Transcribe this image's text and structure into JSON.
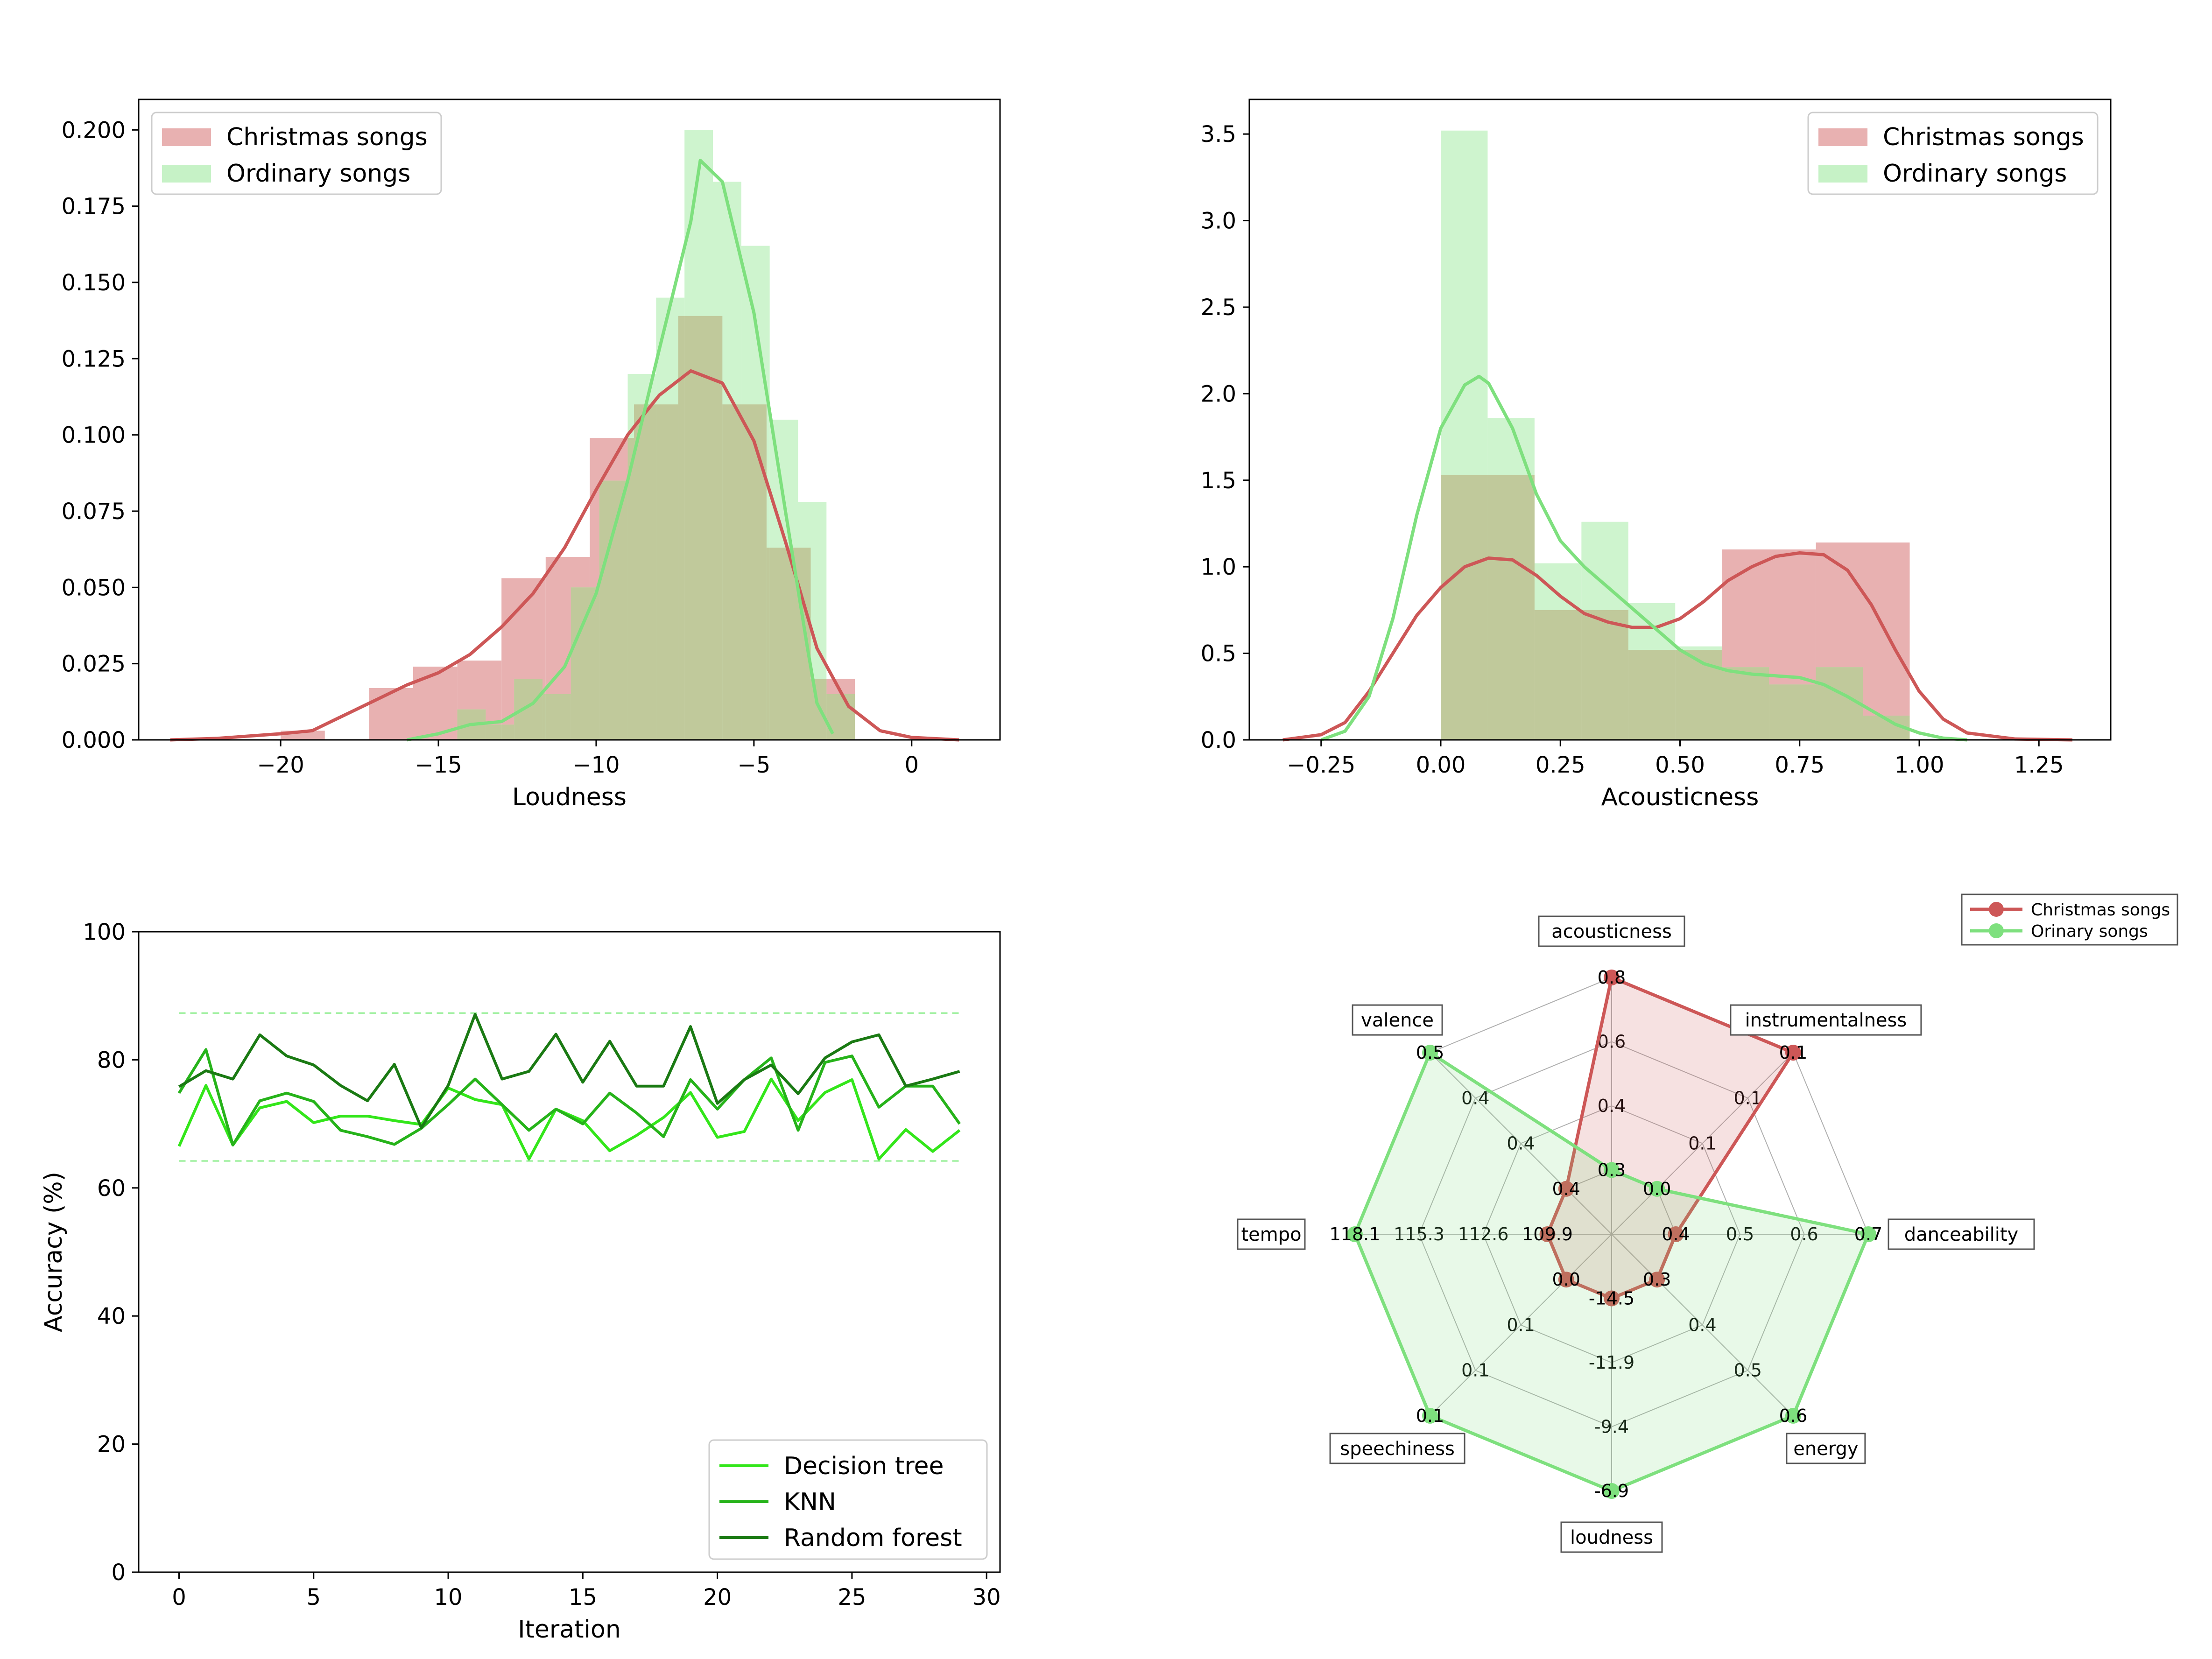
{
  "colors": {
    "christmas": "#cd5757",
    "christmas_fill": "#e8b1b1",
    "ordinary": "#7ee07e",
    "ordinary_fill": "#c6f2c6",
    "overlap": "#c0c99b",
    "dt": "#33e61a",
    "knn": "#26b31a",
    "rf": "#1a7a13",
    "band": "#90ee90"
  },
  "chart_data": [
    {
      "type": "histogram",
      "id": "loudness",
      "xlabel": "Loudness",
      "ylabel": "",
      "xlim": [
        -24.5,
        2.8
      ],
      "ylim": [
        0,
        0.21
      ],
      "xticks": [
        -20,
        -15,
        -10,
        -5,
        0
      ],
      "xtick_labels": [
        "−20",
        "−15",
        "−10",
        "−5",
        "0"
      ],
      "yticks": [
        0,
        0.025,
        0.05,
        0.075,
        0.1,
        0.125,
        0.15,
        0.175,
        0.2
      ],
      "ytick_labels": [
        "0.000",
        "0.025",
        "0.050",
        "0.075",
        "0.100",
        "0.125",
        "0.150",
        "0.175",
        "0.200"
      ],
      "legend": [
        "Christmas songs",
        "Ordinary songs"
      ],
      "legend_position": "top-left",
      "christmas_bins": [
        {
          "x0": -20.0,
          "x1": -18.6,
          "h": 0.003
        },
        {
          "x0": -17.2,
          "x1": -15.8,
          "h": 0.017
        },
        {
          "x0": -15.8,
          "x1": -14.4,
          "h": 0.024
        },
        {
          "x0": -14.4,
          "x1": -13.0,
          "h": 0.026
        },
        {
          "x0": -13.0,
          "x1": -11.6,
          "h": 0.053
        },
        {
          "x0": -11.6,
          "x1": -10.2,
          "h": 0.06
        },
        {
          "x0": -10.2,
          "x1": -8.8,
          "h": 0.099
        },
        {
          "x0": -8.8,
          "x1": -7.4,
          "h": 0.11
        },
        {
          "x0": -7.4,
          "x1": -6.0,
          "h": 0.139
        },
        {
          "x0": -6.0,
          "x1": -4.6,
          "h": 0.11
        },
        {
          "x0": -4.6,
          "x1": -3.2,
          "h": 0.063
        },
        {
          "x0": -3.2,
          "x1": -1.8,
          "h": 0.02
        }
      ],
      "ordinary_bins": [
        {
          "x0": -14.4,
          "x1": -13.5,
          "h": 0.01
        },
        {
          "x0": -13.5,
          "x1": -12.6,
          "h": 0.005
        },
        {
          "x0": -12.6,
          "x1": -11.7,
          "h": 0.02
        },
        {
          "x0": -11.7,
          "x1": -10.8,
          "h": 0.015
        },
        {
          "x0": -10.8,
          "x1": -9.9,
          "h": 0.05
        },
        {
          "x0": -9.9,
          "x1": -9.0,
          "h": 0.085
        },
        {
          "x0": -9.0,
          "x1": -8.1,
          "h": 0.12
        },
        {
          "x0": -8.1,
          "x1": -7.2,
          "h": 0.145
        },
        {
          "x0": -7.2,
          "x1": -6.3,
          "h": 0.2
        },
        {
          "x0": -6.3,
          "x1": -5.4,
          "h": 0.183
        },
        {
          "x0": -5.4,
          "x1": -4.5,
          "h": 0.162
        },
        {
          "x0": -4.5,
          "x1": -3.6,
          "h": 0.105
        },
        {
          "x0": -3.6,
          "x1": -2.7,
          "h": 0.078
        },
        {
          "x0": -2.7,
          "x1": -1.8,
          "h": 0.015
        }
      ],
      "christmas_kde": [
        [
          -23.5,
          0
        ],
        [
          -22,
          0.0005
        ],
        [
          -20,
          0.002
        ],
        [
          -19,
          0.003
        ],
        [
          -18,
          0.008
        ],
        [
          -17,
          0.013
        ],
        [
          -16,
          0.018
        ],
        [
          -15,
          0.022
        ],
        [
          -14,
          0.028
        ],
        [
          -13,
          0.037
        ],
        [
          -12,
          0.048
        ],
        [
          -11,
          0.063
        ],
        [
          -10,
          0.082
        ],
        [
          -9,
          0.1
        ],
        [
          -8,
          0.113
        ],
        [
          -7,
          0.121
        ],
        [
          -6,
          0.117
        ],
        [
          -5,
          0.098
        ],
        [
          -4,
          0.065
        ],
        [
          -3,
          0.03
        ],
        [
          -2,
          0.011
        ],
        [
          -1,
          0.003
        ],
        [
          0,
          0.0008
        ],
        [
          1.5,
          0
        ]
      ],
      "ordinary_kde": [
        [
          -16,
          0
        ],
        [
          -15,
          0.002
        ],
        [
          -14,
          0.005
        ],
        [
          -13,
          0.006
        ],
        [
          -12,
          0.012
        ],
        [
          -11,
          0.024
        ],
        [
          -10,
          0.048
        ],
        [
          -9,
          0.085
        ],
        [
          -8,
          0.128
        ],
        [
          -7,
          0.17
        ],
        [
          -6.7,
          0.19
        ],
        [
          -6,
          0.183
        ],
        [
          -5,
          0.14
        ],
        [
          -4,
          0.075
        ],
        [
          -3.3,
          0.03
        ],
        [
          -3,
          0.012
        ],
        [
          -2.5,
          0.002
        ]
      ]
    },
    {
      "type": "histogram",
      "id": "acousticness",
      "xlabel": "Acousticness",
      "ylabel": "",
      "xlim": [
        -0.4,
        1.4
      ],
      "ylim": [
        0,
        3.7
      ],
      "xticks": [
        -0.25,
        0,
        0.25,
        0.5,
        0.75,
        1.0,
        1.25
      ],
      "xtick_labels": [
        "−0.25",
        "0.00",
        "0.25",
        "0.50",
        "0.75",
        "1.00",
        "1.25"
      ],
      "yticks": [
        0,
        0.5,
        1.0,
        1.5,
        2.0,
        2.5,
        3.0,
        3.5
      ],
      "ytick_labels": [
        "0.0",
        "0.5",
        "1.0",
        "1.5",
        "2.0",
        "2.5",
        "3.0",
        "3.5"
      ],
      "legend": [
        "Christmas songs",
        "Ordinary songs"
      ],
      "legend_position": "top-right",
      "christmas_bins": [
        {
          "x0": 0.0,
          "x1": 0.196,
          "h": 1.53
        },
        {
          "x0": 0.196,
          "x1": 0.392,
          "h": 0.75
        },
        {
          "x0": 0.392,
          "x1": 0.588,
          "h": 0.52
        },
        {
          "x0": 0.588,
          "x1": 0.784,
          "h": 1.1
        },
        {
          "x0": 0.784,
          "x1": 0.98,
          "h": 1.14
        }
      ],
      "ordinary_bins": [
        {
          "x0": 0.0,
          "x1": 0.098,
          "h": 3.52
        },
        {
          "x0": 0.098,
          "x1": 0.196,
          "h": 1.86
        },
        {
          "x0": 0.196,
          "x1": 0.294,
          "h": 1.02
        },
        {
          "x0": 0.294,
          "x1": 0.392,
          "h": 1.26
        },
        {
          "x0": 0.392,
          "x1": 0.49,
          "h": 0.79
        },
        {
          "x0": 0.49,
          "x1": 0.588,
          "h": 0.54
        },
        {
          "x0": 0.588,
          "x1": 0.686,
          "h": 0.42
        },
        {
          "x0": 0.686,
          "x1": 0.784,
          "h": 0.32
        },
        {
          "x0": 0.784,
          "x1": 0.882,
          "h": 0.42
        },
        {
          "x0": 0.882,
          "x1": 0.98,
          "h": 0.14
        }
      ],
      "christmas_kde": [
        [
          -0.33,
          0
        ],
        [
          -0.25,
          0.03
        ],
        [
          -0.2,
          0.1
        ],
        [
          -0.15,
          0.28
        ],
        [
          -0.1,
          0.5
        ],
        [
          -0.05,
          0.72
        ],
        [
          0,
          0.88
        ],
        [
          0.05,
          1.0
        ],
        [
          0.1,
          1.05
        ],
        [
          0.15,
          1.04
        ],
        [
          0.2,
          0.95
        ],
        [
          0.25,
          0.83
        ],
        [
          0.3,
          0.73
        ],
        [
          0.35,
          0.68
        ],
        [
          0.4,
          0.65
        ],
        [
          0.45,
          0.65
        ],
        [
          0.5,
          0.7
        ],
        [
          0.55,
          0.8
        ],
        [
          0.6,
          0.92
        ],
        [
          0.65,
          1.0
        ],
        [
          0.7,
          1.06
        ],
        [
          0.75,
          1.08
        ],
        [
          0.8,
          1.07
        ],
        [
          0.85,
          0.98
        ],
        [
          0.9,
          0.78
        ],
        [
          0.95,
          0.52
        ],
        [
          1.0,
          0.28
        ],
        [
          1.05,
          0.12
        ],
        [
          1.1,
          0.04
        ],
        [
          1.2,
          0.005
        ],
        [
          1.32,
          0
        ]
      ],
      "ordinary_kde": [
        [
          -0.25,
          0
        ],
        [
          -0.2,
          0.05
        ],
        [
          -0.15,
          0.25
        ],
        [
          -0.1,
          0.7
        ],
        [
          -0.05,
          1.3
        ],
        [
          0,
          1.8
        ],
        [
          0.05,
          2.05
        ],
        [
          0.08,
          2.1
        ],
        [
          0.1,
          2.06
        ],
        [
          0.15,
          1.8
        ],
        [
          0.2,
          1.42
        ],
        [
          0.25,
          1.15
        ],
        [
          0.3,
          1.0
        ],
        [
          0.35,
          0.88
        ],
        [
          0.4,
          0.76
        ],
        [
          0.45,
          0.64
        ],
        [
          0.5,
          0.52
        ],
        [
          0.55,
          0.44
        ],
        [
          0.6,
          0.4
        ],
        [
          0.65,
          0.38
        ],
        [
          0.7,
          0.37
        ],
        [
          0.75,
          0.36
        ],
        [
          0.8,
          0.32
        ],
        [
          0.85,
          0.25
        ],
        [
          0.9,
          0.17
        ],
        [
          0.95,
          0.09
        ],
        [
          1.0,
          0.04
        ],
        [
          1.05,
          0.01
        ],
        [
          1.1,
          0
        ]
      ]
    },
    {
      "type": "line",
      "id": "accuracy",
      "xlabel": "Iteration",
      "ylabel": "Accuracy (%)",
      "xlim": [
        -1.5,
        30.5
      ],
      "ylim": [
        0,
        100
      ],
      "xticks": [
        0,
        5,
        10,
        15,
        20,
        25,
        30
      ],
      "yticks": [
        0,
        20,
        40,
        60,
        80,
        100
      ],
      "band": [
        64.2,
        87.3
      ],
      "legend_position": "bottom-right",
      "series": [
        {
          "name": "Decision tree",
          "values": [
            66.5,
            76,
            66.7,
            72.5,
            73.5,
            70.2,
            71.2,
            71.2,
            70.5,
            69.9,
            75.6,
            73.8,
            73,
            64.5,
            72.3,
            70.5,
            65.8,
            68.2,
            71,
            74.9,
            67.9,
            68.8,
            77,
            70.5,
            74.9,
            76.9,
            64.5,
            69.1,
            65.7,
            69
          ]
        },
        {
          "name": "KNN",
          "values": [
            74.8,
            81.6,
            66.7,
            73.6,
            74.8,
            73.5,
            69,
            68,
            66.8,
            69.3,
            73,
            77,
            73,
            69,
            72.3,
            70,
            74.8,
            71.7,
            68,
            76.9,
            72.3,
            76.9,
            80.3,
            69,
            79.6,
            80.6,
            72.6,
            75.9,
            75.9,
            70
          ]
        },
        {
          "name": "Random forest",
          "values": [
            75.8,
            78.3,
            77,
            83.9,
            80.6,
            79.2,
            76,
            73.6,
            79.3,
            69.4,
            76,
            87.1,
            77,
            78.2,
            84,
            76.5,
            82.9,
            75.9,
            75.9,
            85.2,
            73.2,
            76.9,
            79.2,
            74.7,
            80.3,
            82.8,
            83.9,
            75.9,
            77,
            78.2
          ]
        }
      ]
    },
    {
      "type": "radar",
      "id": "radar",
      "axes": [
        "acousticness",
        "instrumentalness",
        "danceability",
        "energy",
        "loudness",
        "speechiness",
        "tempo",
        "valence"
      ],
      "legend": [
        "Christmas songs",
        "Orinary songs"
      ],
      "legend_position": "top-right",
      "ring_labels": {
        "acousticness": [
          "0.4",
          "0.6",
          "0.8"
        ],
        "instrumentalness": [
          "0.1",
          "0.1",
          "0.1"
        ],
        "danceability": [
          "0.5",
          "0.6",
          "0.7"
        ],
        "energy": [
          "0.4",
          "0.5",
          "0.6"
        ],
        "loudness": [
          "-11.9",
          "-9.4",
          "-6.9"
        ],
        "speechiness": [
          "0.1",
          "0.1",
          "0.1"
        ],
        "tempo": [
          "112.6",
          "115.3",
          "118.1"
        ],
        "valence": [
          "0.4",
          "0.4",
          "0.5"
        ]
      },
      "christmas": {
        "radii": [
          1.0,
          1.0,
          0.25,
          0.25,
          0.25,
          0.25,
          0.25,
          0.25
        ],
        "value_labels": [
          "0.8",
          "0.1",
          "0.4",
          "0.3",
          "-14.5",
          "0.0",
          "109.9",
          "0.4"
        ]
      },
      "ordinary": {
        "radii": [
          0.25,
          0.25,
          1.0,
          1.0,
          1.0,
          1.0,
          1.0,
          1.0
        ],
        "value_labels": [
          "0.3",
          "0.0",
          "0.7",
          "0.6",
          "-6.9",
          "0.1",
          "118.1",
          "0.5"
        ]
      }
    }
  ]
}
